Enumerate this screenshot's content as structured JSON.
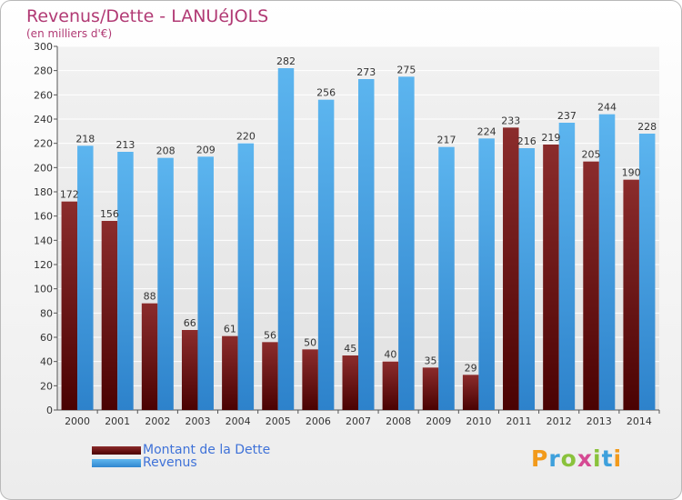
{
  "chart_data": {
    "type": "bar",
    "title": "Revenus/Dette - LANUéJOLS",
    "subtitle": "(en milliers d'€)",
    "categories": [
      "2000",
      "2001",
      "2002",
      "2003",
      "2004",
      "2005",
      "2006",
      "2007",
      "2008",
      "2009",
      "2010",
      "2011",
      "2012",
      "2013",
      "2014"
    ],
    "series": [
      {
        "name": "Montant de la Dette",
        "color": "#6b1616",
        "values": [
          172,
          156,
          88,
          66,
          61,
          56,
          50,
          45,
          40,
          35,
          29,
          233,
          219,
          205,
          190
        ]
      },
      {
        "name": "Revenus",
        "color": "#4aa3e6",
        "values": [
          218,
          213,
          208,
          209,
          220,
          282,
          256,
          273,
          275,
          217,
          224,
          216,
          237,
          244,
          228
        ]
      }
    ],
    "ylim": [
      0,
      300
    ],
    "yticks": [
      0,
      20,
      40,
      60,
      80,
      100,
      120,
      140,
      160,
      180,
      200,
      220,
      240,
      260,
      280,
      300
    ],
    "grid": true,
    "legend_position": "bottom-left"
  },
  "logo_text": "Proxiti"
}
